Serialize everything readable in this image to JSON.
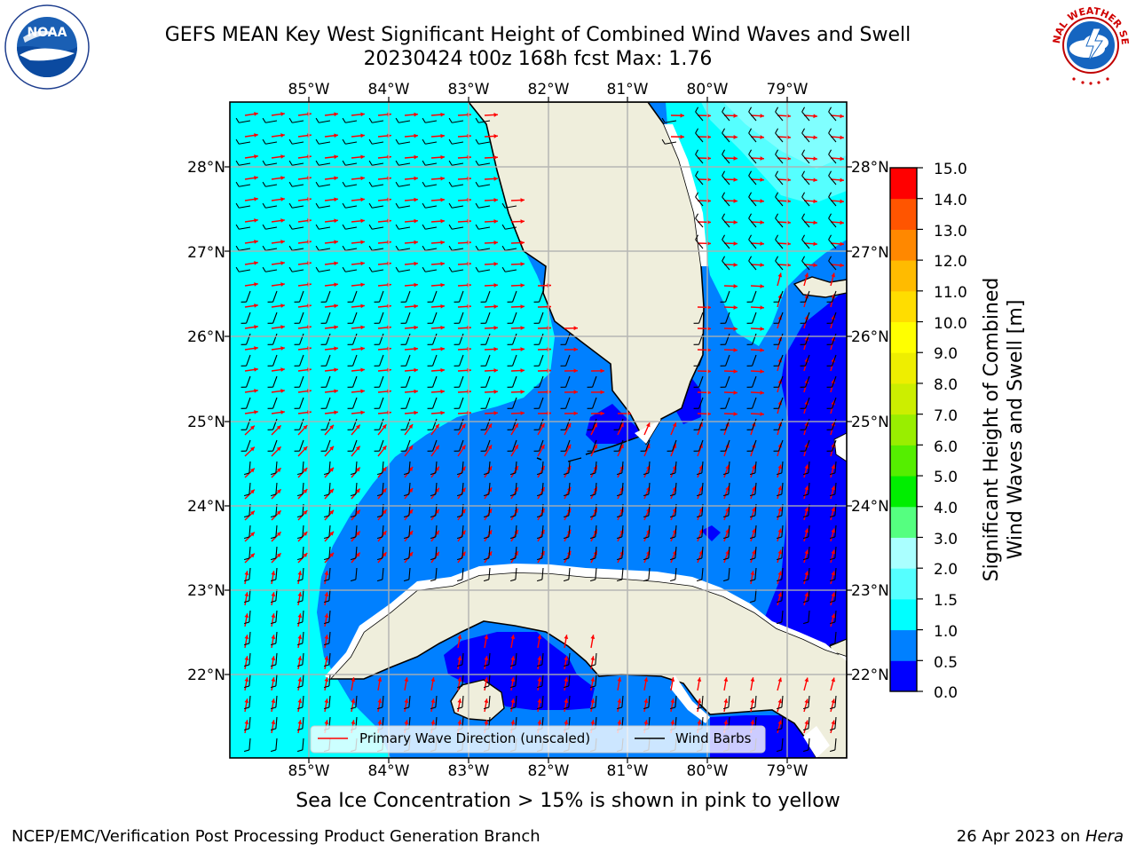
{
  "title": {
    "line1": "GEFS MEAN Key West Significant Height of Combined Wind Waves and Swell",
    "line2": "20230424 t00z 168h fcst   Max: 1.76"
  },
  "map": {
    "lon_ticks": [
      "85°W",
      "84°W",
      "83°W",
      "82°W",
      "81°W",
      "80°W",
      "79°W"
    ],
    "lat_ticks": [
      "28°N",
      "27°N",
      "26°N",
      "25°N",
      "24°N",
      "23°N",
      "22°N"
    ],
    "legend": {
      "wave_direction": "Primary Wave Direction (unscaled)",
      "wind_barbs": "Wind Barbs"
    },
    "colors": {
      "land": "#efeedc",
      "wave_arrow": "#ff0000",
      "wind_barb": "#000000",
      "grid": "#b0b0b0"
    }
  },
  "colorbar": {
    "label_line1": "Significant Height of Combined",
    "label_line2": "Wind Waves and Swell [m]",
    "ticks": [
      "0.0",
      "0.5",
      "1.0",
      "1.5",
      "2.0",
      "3.0",
      "4.0",
      "5.0",
      "6.0",
      "7.0",
      "8.0",
      "9.0",
      "10.0",
      "11.0",
      "12.0",
      "13.0",
      "14.0",
      "15.0"
    ],
    "colors": [
      "#0000ff",
      "#0080ff",
      "#00ffff",
      "#55ffff",
      "#aaffff",
      "#55ff80",
      "#00ee00",
      "#55ee00",
      "#99ee00",
      "#ccee00",
      "#eeee00",
      "#ffff00",
      "#ffdd00",
      "#ffbb00",
      "#ff8800",
      "#ff5500",
      "#ff0000"
    ]
  },
  "bottom_note": "Sea Ice Concentration > 15% is shown in pink to yellow",
  "footer": {
    "left": "NCEP/EMC/Verification Post Processing Product Generation Branch",
    "right_date": "26 Apr 2023 on ",
    "right_host": "Hera"
  },
  "logos": {
    "noaa": "NOAA",
    "nws": "NATIONAL WEATHER SERVICE"
  }
}
